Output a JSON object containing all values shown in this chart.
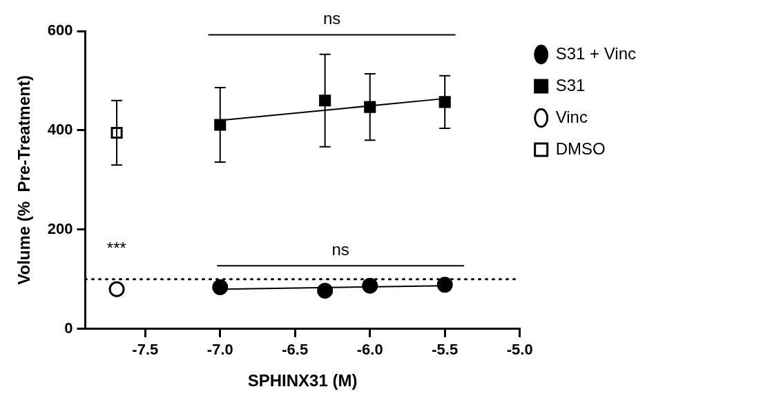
{
  "chart_data": {
    "type": "scatter",
    "xlabel": "SPHINX31 (M)",
    "ylabel": "Volume (%  Pre-Treatment)",
    "xlim": [
      -7.9,
      -5.0
    ],
    "xticks": [
      -7.5,
      {
        "value": -7,
        "label": "-7.0"
      },
      -6.5,
      {
        "value": -6,
        "label": "-6.0"
      },
      -5.5,
      {
        "value": -5,
        "label": "-5.0"
      }
    ],
    "ylim": [
      0,
      600
    ],
    "yticks": [
      0,
      200,
      400,
      600
    ],
    "grid": false,
    "legend": "right",
    "series": [
      {
        "name": "S31 + Vinc",
        "marker": "circle",
        "color": "#000000",
        "x": [
          -7,
          -6.3,
          -6,
          -5.5
        ],
        "values": [
          84,
          77,
          87,
          89
        ]
      },
      {
        "name": "S31",
        "marker": "square",
        "color": "#000000",
        "x": [
          -7,
          -6.3,
          -6,
          -5.5
        ],
        "values": [
          411,
          460,
          447,
          457
        ],
        "errors": [
          75,
          93,
          67,
          53
        ]
      },
      {
        "name": "Vinc",
        "marker": "circle",
        "color": "#ffffff",
        "x": [
          -7.69
        ],
        "values": [
          80
        ]
      },
      {
        "name": "DMSO",
        "marker": "square",
        "color": "#ffffff",
        "x": [
          -7.69
        ],
        "values": [
          395
        ],
        "errors": [
          65
        ]
      },
      {
        "type": "line",
        "color": "#000000",
        "x": [
          -7,
          -5.5
        ],
        "values": [
          80,
          87
        ],
        "marker": "none"
      },
      {
        "type": "line",
        "color": "#000000",
        "x": [
          -7,
          -5.5
        ],
        "values": [
          420,
          464
        ],
        "marker": "none"
      }
    ],
    "ref_lines": [
      {
        "axis": "y",
        "value": 100,
        "line_style": "dotted",
        "color": "#000000"
      }
    ],
    "annotations": [
      "ns",
      "ns",
      "***"
    ]
  }
}
